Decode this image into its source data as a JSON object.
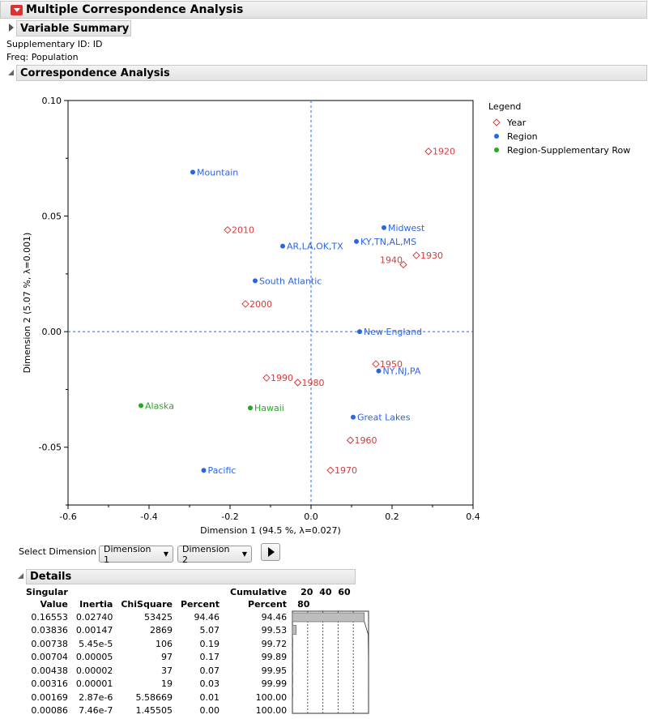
{
  "report": {
    "title": "Multiple Correspondence Analysis",
    "variable_summary": "Variable Summary",
    "supp_id": "Supplementary ID: ID",
    "freq": "Freq: Population",
    "ca_title": "Correspondence Analysis"
  },
  "chart_data": {
    "type": "scatter",
    "xlabel": "Dimension 1  (94.5 %, λ=0.027)",
    "ylabel": "Dimension 2  (5.07 %, λ=0.001)",
    "xlim": [
      -0.6,
      0.4
    ],
    "ylim": [
      -0.075,
      0.1
    ],
    "xticks": [
      -0.6,
      -0.4,
      -0.2,
      0.0,
      0.2,
      0.4
    ],
    "xtick_labels": [
      "-0.6",
      "-0.4",
      "-0.2",
      "0.0",
      "0.2",
      "0.4"
    ],
    "yticks": [
      -0.05,
      0.0,
      0.05,
      0.1
    ],
    "ytick_labels": [
      "-0.05",
      "0.00",
      "0.05",
      "0.10"
    ],
    "reference_lines": {
      "x": 0.0,
      "y": 0.0
    },
    "legend_title": "Legend",
    "legend_position": "right",
    "series": [
      {
        "name": "Year",
        "marker": "diamond",
        "color": "#d83a3a",
        "points": [
          {
            "label": "1920",
            "x": 0.29,
            "y": 0.078
          },
          {
            "label": "1930",
            "x": 0.26,
            "y": 0.033
          },
          {
            "label": "1940",
            "x": 0.228,
            "y": 0.029
          },
          {
            "label": "1950",
            "x": 0.16,
            "y": -0.014
          },
          {
            "label": "1960",
            "x": 0.097,
            "y": -0.047
          },
          {
            "label": "1970",
            "x": 0.048,
            "y": -0.06
          },
          {
            "label": "1980",
            "x": -0.033,
            "y": -0.022
          },
          {
            "label": "1990",
            "x": -0.11,
            "y": -0.02
          },
          {
            "label": "2000",
            "x": -0.162,
            "y": 0.012
          },
          {
            "label": "2010",
            "x": -0.206,
            "y": 0.044
          }
        ]
      },
      {
        "name": "Region",
        "marker": "dot",
        "color": "#2c64e8",
        "points": [
          {
            "label": "Mountain",
            "x": -0.292,
            "y": 0.069
          },
          {
            "label": "Midwest",
            "x": 0.18,
            "y": 0.045
          },
          {
            "label": "AR,LA,OK,TX",
            "x": -0.07,
            "y": 0.037
          },
          {
            "label": "KY,TN,AL,MS",
            "x": 0.112,
            "y": 0.039
          },
          {
            "label": "South Atlantic",
            "x": -0.138,
            "y": 0.022
          },
          {
            "label": "New England",
            "x": 0.12,
            "y": 0.0
          },
          {
            "label": "NY,NJ,PA",
            "x": 0.167,
            "y": -0.017
          },
          {
            "label": "Great Lakes",
            "x": 0.104,
            "y": -0.037
          },
          {
            "label": "Pacific",
            "x": -0.265,
            "y": -0.06
          }
        ]
      },
      {
        "name": "Region-Supplementary Row",
        "marker": "dot",
        "color": "#22aa22",
        "points": [
          {
            "label": "Alaska",
            "x": -0.42,
            "y": -0.032
          },
          {
            "label": "Hawaii",
            "x": -0.15,
            "y": -0.033
          }
        ]
      }
    ]
  },
  "controls": {
    "select_dimension_label": "Select Dimension",
    "dim_x": "Dimension 1",
    "dim_y": "Dimension 2"
  },
  "details": {
    "title": "Details",
    "headers": {
      "singular_1": "Singular",
      "singular_2": "Value",
      "inertia": "Inertia",
      "chisquare": "ChiSquare",
      "percent": "Percent",
      "cumulative_1": "Cumulative",
      "cumulative_2": "Percent",
      "bar_ticks": [
        "20",
        "40",
        "60",
        "80"
      ]
    },
    "rows": [
      {
        "sv": "0.16553",
        "inertia": "0.02740",
        "chi": "53425",
        "pct": "94.46",
        "cum": "94.46",
        "pct_val": 94.46
      },
      {
        "sv": "0.03836",
        "inertia": "0.00147",
        "chi": "2869",
        "pct": "5.07",
        "cum": "99.53",
        "pct_val": 5.07
      },
      {
        "sv": "0.00738",
        "inertia": "5.45e-5",
        "chi": "106",
        "pct": "0.19",
        "cum": "99.72",
        "pct_val": 0.19
      },
      {
        "sv": "0.00704",
        "inertia": "0.00005",
        "chi": "97",
        "pct": "0.17",
        "cum": "99.89",
        "pct_val": 0.17
      },
      {
        "sv": "0.00438",
        "inertia": "0.00002",
        "chi": "37",
        "pct": "0.07",
        "cum": "99.95",
        "pct_val": 0.07
      },
      {
        "sv": "0.00316",
        "inertia": "0.00001",
        "chi": "19",
        "pct": "0.03",
        "cum": "99.99",
        "pct_val": 0.03
      },
      {
        "sv": "0.00169",
        "inertia": "2.87e-6",
        "chi": "5.58669",
        "pct": "0.01",
        "cum": "100.00",
        "pct_val": 0.01
      },
      {
        "sv": "0.00086",
        "inertia": "7.46e-7",
        "chi": "1.45505",
        "pct": "0.00",
        "cum": "100.00",
        "pct_val": 0.0
      }
    ]
  }
}
